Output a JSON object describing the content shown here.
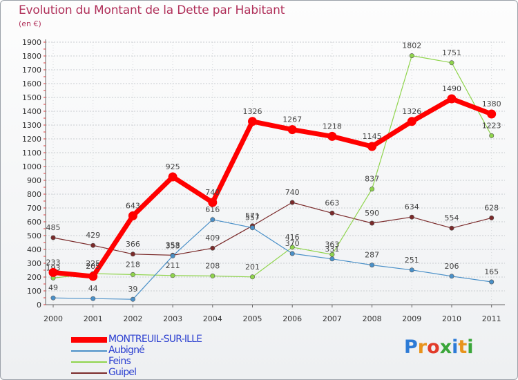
{
  "title": "Evolution du Montant de la Dette par Habitant",
  "subtitle": "(en €)",
  "logo": {
    "text": "Proxiti",
    "colors": [
      "#2d7bd6",
      "#e8931c",
      "#e23b2a",
      "#3aa63a",
      "#2d7bd6",
      "#e8931c",
      "#3aa63a"
    ]
  },
  "chart_data": {
    "type": "line",
    "title": "Evolution du Montant de la Dette par Habitant",
    "subtitle": "(en €)",
    "x": [
      "2000",
      "2001",
      "2002",
      "2003",
      "2004",
      "2005",
      "2006",
      "2007",
      "2008",
      "2009",
      "2010",
      "2011"
    ],
    "ylim": [
      0,
      1900
    ],
    "yticks": [
      0,
      100,
      200,
      300,
      400,
      500,
      600,
      700,
      800,
      900,
      1000,
      1100,
      1200,
      1300,
      1400,
      1500,
      1600,
      1700,
      1800,
      1900
    ],
    "grid": true,
    "legend_position": "bottom-left",
    "series": [
      {
        "name": "Guipel",
        "color": "#7a2a2a",
        "values": [
          485,
          429,
          366,
          358,
          409,
          571,
          740,
          663,
          590,
          634,
          554,
          628
        ]
      },
      {
        "name": "Feins",
        "color": "#8fd44c",
        "values": [
          193,
          225,
          218,
          211,
          208,
          201,
          416,
          363,
          837,
          1802,
          1751,
          1223
        ]
      },
      {
        "name": "Aubigné",
        "color": "#4a90c8",
        "values": [
          49,
          44,
          39,
          353,
          616,
          557,
          370,
          331,
          287,
          251,
          206,
          165
        ]
      },
      {
        "name": "MONTREUIL-SUR-ILLE",
        "color": "#ff0000",
        "values": [
          233,
          205,
          643,
          925,
          740,
          1326,
          1267,
          1218,
          1145,
          1326,
          1490,
          1380
        ]
      }
    ]
  }
}
